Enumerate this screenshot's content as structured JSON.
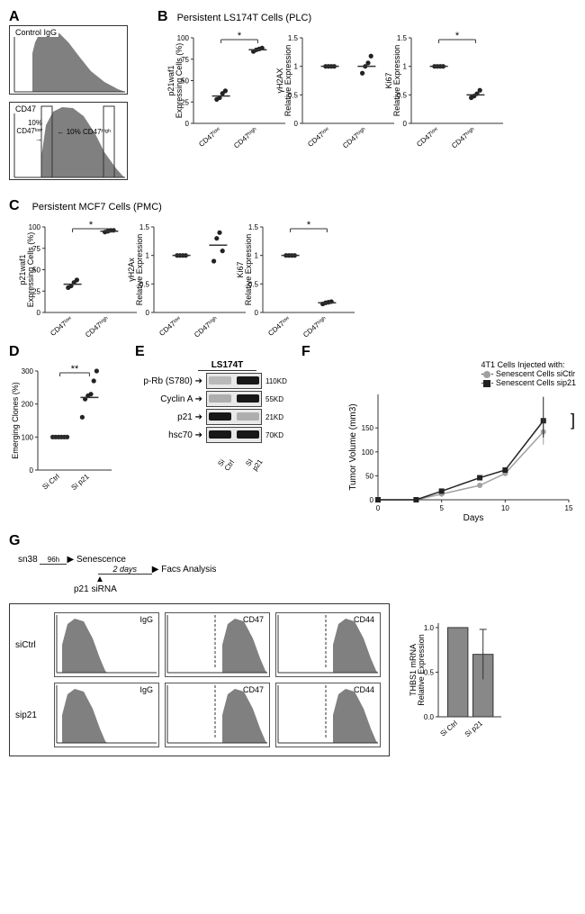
{
  "panelA": {
    "label": "A",
    "top_hist_label": "Control IgG",
    "bottom_hist_label": "CD47",
    "gate_low": "10% CD47ˡᵒʷ",
    "gate_high": "10% CD47ʰⁱᵍʰ",
    "fill": "#808080"
  },
  "panelB": {
    "label": "B",
    "title": "Persistent LS174T Cells (PLC)",
    "plots": [
      {
        "ylabel": "p21waf1\nExpressing Cells (%)",
        "yticks": [
          0,
          25,
          50,
          75,
          100
        ],
        "low_mean": 32,
        "high_mean": 86,
        "low_pts": [
          28,
          30,
          35,
          38
        ],
        "high_pts": [
          84,
          86,
          87,
          88
        ],
        "sig": "*"
      },
      {
        "ylabel": "γH2AX\nRelative Expression",
        "yticks": [
          0.0,
          0.5,
          1.0,
          1.5
        ],
        "low_mean": 1.0,
        "high_mean": 1.0,
        "low_pts": [
          1.0,
          1.0,
          1.0,
          1.0
        ],
        "high_pts": [
          0.88,
          1.0,
          1.06,
          1.18
        ],
        "sig": ""
      },
      {
        "ylabel": "Ki67\nRelative Expression",
        "yticks": [
          0.0,
          0.5,
          1.0,
          1.5
        ],
        "low_mean": 1.0,
        "high_mean": 0.5,
        "low_pts": [
          1.0,
          1.0,
          1.0,
          1.0
        ],
        "high_pts": [
          0.45,
          0.48,
          0.52,
          0.58
        ],
        "sig": "*"
      }
    ],
    "xlabels": [
      "CD47ˡᵒʷ",
      "CD47ʰⁱᵍʰ"
    ]
  },
  "panelC": {
    "label": "C",
    "title": "Persistent MCF7 Cells (PMC)",
    "plots": [
      {
        "ylabel": "p21waf1\nExpressing Cells (%)",
        "yticks": [
          0,
          25,
          50,
          75,
          100
        ],
        "low_mean": 33,
        "high_mean": 95,
        "low_pts": [
          29,
          31,
          35,
          38
        ],
        "high_pts": [
          94,
          95,
          96,
          96
        ],
        "sig": "*"
      },
      {
        "ylabel": "γH2Ax\nRelative Expression",
        "yticks": [
          0.0,
          0.5,
          1.0,
          1.5
        ],
        "low_mean": 1.0,
        "high_mean": 1.18,
        "low_pts": [
          1.0,
          1.0,
          1.0,
          1.0
        ],
        "high_pts": [
          0.9,
          1.3,
          1.4,
          1.08
        ],
        "sig": ""
      },
      {
        "ylabel": "Ki67\nRelative Expression",
        "yticks": [
          0.0,
          0.5,
          1.0,
          1.5
        ],
        "low_mean": 1.0,
        "high_mean": 0.17,
        "low_pts": [
          1.0,
          1.0,
          1.0,
          1.0
        ],
        "high_pts": [
          0.15,
          0.17,
          0.18,
          0.19
        ],
        "sig": "*"
      }
    ],
    "xlabels": [
      "CD47ˡᵒʷ",
      "CD47ʰⁱᵍʰ"
    ]
  },
  "panelD": {
    "label": "D",
    "ylabel": "Emerging Clones (%)",
    "yticks": [
      0,
      100,
      200,
      300
    ],
    "ctrl_pts": [
      100,
      100,
      100,
      100,
      100,
      100
    ],
    "p21_pts": [
      160,
      215,
      225,
      230,
      270,
      300
    ],
    "ctrl_mean": 100,
    "p21_mean": 220,
    "xlabels": [
      "Si Ctrl",
      "Si p21"
    ],
    "sig": "**"
  },
  "panelE": {
    "label": "E",
    "title": "LS174T",
    "rows": [
      {
        "name": "p-Rb (S780)",
        "mw": "110KD",
        "ctrl_intensity": 0.2,
        "p21_intensity": 0.9
      },
      {
        "name": "Cyclin A",
        "mw": "55KD",
        "ctrl_intensity": 0.25,
        "p21_intensity": 0.9
      },
      {
        "name": "p21",
        "mw": "21KD",
        "ctrl_intensity": 0.9,
        "p21_intensity": 0.25
      },
      {
        "name": "hsc70",
        "mw": "70KD",
        "ctrl_intensity": 0.9,
        "p21_intensity": 0.9
      }
    ],
    "lanes": [
      "Si Ctrl",
      "SI p21"
    ]
  },
  "panelF": {
    "label": "F",
    "title": "4T1 Cells Injected with:",
    "series": [
      {
        "name": "Senescent Cells siCtlr",
        "color": "#a0a0a0",
        "marker": "circle",
        "points": [
          [
            0,
            0
          ],
          [
            3,
            0
          ],
          [
            5,
            12
          ],
          [
            8,
            30
          ],
          [
            10,
            55
          ],
          [
            13,
            142
          ]
        ]
      },
      {
        "name": "Senescent Cells sip21",
        "color": "#222222",
        "marker": "square",
        "points": [
          [
            0,
            0
          ],
          [
            3,
            0
          ],
          [
            5,
            18
          ],
          [
            8,
            46
          ],
          [
            10,
            62
          ],
          [
            13,
            165
          ]
        ]
      }
    ],
    "xlabel": "Days",
    "ylabel": "Tumor Volume (mm3)",
    "xticks": [
      0,
      5,
      10,
      15
    ],
    "yticks": [
      0,
      50,
      100,
      150
    ],
    "sig": "**"
  },
  "panelG": {
    "label": "G",
    "schematic": {
      "step1": "sn38",
      "dur1": "96h",
      "step2": "Senescence",
      "step3": "p21 siRNA",
      "dur2": "2 days",
      "step4": "Facs Analysis"
    },
    "rows": [
      "siCtrl",
      "sip21"
    ],
    "cols": [
      "IgG",
      "CD47",
      "CD44"
    ],
    "fill": "#808080",
    "bar": {
      "ylabel": "THBS1 mRNA\nRelative Expression",
      "yticks": [
        0.0,
        0.5,
        1.0
      ],
      "ctrl": 1.0,
      "p21": 0.7,
      "p21_err": 0.28,
      "xlabels": [
        "Si Ctrl",
        "Si p21"
      ]
    }
  },
  "colors": {
    "axis": "#333333",
    "point": "#222222",
    "bar_fill": "#888888",
    "hist_fill": "#808080"
  }
}
